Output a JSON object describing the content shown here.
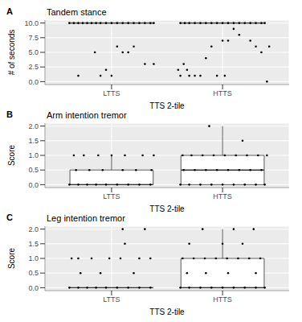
{
  "chart_data": [
    {
      "type": "box",
      "panel_label": "A",
      "title": "Tandem stance",
      "x_label": "TTS 2-tile",
      "y_label": "# of seconds",
      "grid": true,
      "xlim": [
        0.4,
        2.6
      ],
      "xticks": [
        {
          "value": 1,
          "label": "LTTS"
        },
        {
          "value": 2,
          "label": "HTTS"
        }
      ],
      "ylim": [
        -0.5,
        10.5
      ],
      "yticks": [
        {
          "value": 0,
          "label": "0.0"
        },
        {
          "value": 2.5,
          "label": "2.5"
        },
        {
          "value": 5,
          "label": "5.0"
        },
        {
          "value": 7.5,
          "label": "7.5"
        },
        {
          "value": 10,
          "label": "10.0"
        }
      ],
      "boxes": [
        {
          "x": 1,
          "whisker_low": 10,
          "q1": 10,
          "median": 10,
          "q3": 10,
          "whisker_high": 10
        },
        {
          "x": 2,
          "whisker_low": 10,
          "q1": 10,
          "median": 10,
          "q3": 10,
          "whisker_high": 10
        }
      ],
      "points": [
        [
          0.62,
          10
        ],
        [
          0.66,
          10
        ],
        [
          0.7,
          10
        ],
        [
          0.74,
          10
        ],
        [
          0.78,
          10
        ],
        [
          0.82,
          10
        ],
        [
          0.86,
          10
        ],
        [
          0.9,
          10
        ],
        [
          0.95,
          10
        ],
        [
          1.0,
          10
        ],
        [
          1.05,
          10
        ],
        [
          1.1,
          10
        ],
        [
          1.15,
          10
        ],
        [
          1.2,
          10
        ],
        [
          1.25,
          10
        ],
        [
          1.3,
          10
        ],
        [
          1.35,
          10
        ],
        [
          1.38,
          10
        ],
        [
          0.7,
          1
        ],
        [
          0.85,
          5
        ],
        [
          0.9,
          1
        ],
        [
          0.95,
          2
        ],
        [
          1.0,
          1
        ],
        [
          1.05,
          6
        ],
        [
          1.1,
          5
        ],
        [
          1.15,
          5
        ],
        [
          1.2,
          6
        ],
        [
          1.3,
          3
        ],
        [
          1.38,
          3
        ],
        [
          1.62,
          10
        ],
        [
          1.66,
          10
        ],
        [
          1.7,
          10
        ],
        [
          1.75,
          10
        ],
        [
          1.8,
          10
        ],
        [
          1.85,
          10
        ],
        [
          1.9,
          10
        ],
        [
          1.95,
          10
        ],
        [
          2.0,
          10
        ],
        [
          2.05,
          10
        ],
        [
          2.1,
          10
        ],
        [
          2.15,
          10
        ],
        [
          2.2,
          10
        ],
        [
          2.25,
          10
        ],
        [
          2.3,
          10
        ],
        [
          2.35,
          10
        ],
        [
          2.38,
          10
        ],
        [
          1.6,
          2
        ],
        [
          1.62,
          1
        ],
        [
          1.65,
          3
        ],
        [
          1.68,
          2
        ],
        [
          1.7,
          1
        ],
        [
          1.75,
          1
        ],
        [
          1.8,
          1
        ],
        [
          1.85,
          4
        ],
        [
          1.9,
          6
        ],
        [
          1.95,
          1
        ],
        [
          2.0,
          7
        ],
        [
          2.02,
          1
        ],
        [
          2.05,
          7
        ],
        [
          2.1,
          9
        ],
        [
          2.15,
          8
        ],
        [
          2.25,
          7
        ],
        [
          2.3,
          6
        ],
        [
          2.35,
          5
        ],
        [
          2.4,
          0
        ],
        [
          2.42,
          6
        ]
      ]
    },
    {
      "type": "box",
      "panel_label": "B",
      "title": "Arm intention tremor",
      "x_label": "TTS 2-tile",
      "y_label": "Score",
      "grid": true,
      "xlim": [
        0.4,
        2.6
      ],
      "xticks": [
        {
          "value": 1,
          "label": "LTTS"
        },
        {
          "value": 2,
          "label": "HTTS"
        }
      ],
      "ylim": [
        -0.1,
        2.1
      ],
      "yticks": [
        {
          "value": 0,
          "label": "0.0"
        },
        {
          "value": 0.5,
          "label": "0.5"
        },
        {
          "value": 1,
          "label": "1.0"
        },
        {
          "value": 1.5,
          "label": "1.5"
        },
        {
          "value": 2,
          "label": "2.0"
        }
      ],
      "boxes": [
        {
          "x": 1,
          "whisker_low": 0,
          "q1": 0,
          "median": 0,
          "q3": 0.5,
          "whisker_high": 1
        },
        {
          "x": 2,
          "whisker_low": 0,
          "q1": 0,
          "median": 0.5,
          "q3": 1,
          "whisker_high": 2
        }
      ],
      "points": [
        [
          0.62,
          0
        ],
        [
          0.7,
          0
        ],
        [
          0.78,
          0
        ],
        [
          0.86,
          0
        ],
        [
          0.95,
          0
        ],
        [
          1.05,
          0
        ],
        [
          1.15,
          0
        ],
        [
          1.25,
          0
        ],
        [
          1.35,
          0
        ],
        [
          0.68,
          0.5
        ],
        [
          0.8,
          0.5
        ],
        [
          0.92,
          0.5
        ],
        [
          1.1,
          0.5
        ],
        [
          1.22,
          0.5
        ],
        [
          1.36,
          0.5
        ],
        [
          0.66,
          1
        ],
        [
          0.75,
          1
        ],
        [
          0.88,
          1
        ],
        [
          1.0,
          1
        ],
        [
          1.12,
          1
        ],
        [
          1.28,
          1
        ],
        [
          1.38,
          1
        ],
        [
          1.62,
          0
        ],
        [
          1.7,
          0
        ],
        [
          1.8,
          0
        ],
        [
          1.9,
          0
        ],
        [
          2.0,
          0
        ],
        [
          2.1,
          0
        ],
        [
          2.2,
          0
        ],
        [
          2.3,
          0
        ],
        [
          2.38,
          0
        ],
        [
          1.65,
          0.5
        ],
        [
          1.75,
          0.5
        ],
        [
          1.85,
          0.5
        ],
        [
          1.95,
          0.5
        ],
        [
          2.05,
          0.5
        ],
        [
          2.15,
          0.5
        ],
        [
          2.25,
          0.5
        ],
        [
          2.35,
          0.5
        ],
        [
          1.64,
          1
        ],
        [
          1.72,
          1
        ],
        [
          1.82,
          1
        ],
        [
          1.92,
          1
        ],
        [
          2.02,
          1
        ],
        [
          2.12,
          1
        ],
        [
          2.22,
          1
        ],
        [
          2.32,
          1
        ],
        [
          2.4,
          1
        ],
        [
          2.18,
          1.5
        ],
        [
          1.88,
          2
        ]
      ]
    },
    {
      "type": "box",
      "panel_label": "C",
      "title": "Leg intention tremor",
      "x_label": "TTS 2-tile",
      "y_label": "Score",
      "grid": true,
      "xlim": [
        0.4,
        2.6
      ],
      "xticks": [
        {
          "value": 1,
          "label": "LTTS"
        },
        {
          "value": 2,
          "label": "HTTS"
        }
      ],
      "ylim": [
        -0.1,
        2.1
      ],
      "yticks": [
        {
          "value": 0,
          "label": "0.0"
        },
        {
          "value": 0.5,
          "label": "0.5"
        },
        {
          "value": 1,
          "label": "1.0"
        },
        {
          "value": 1.5,
          "label": "1.5"
        },
        {
          "value": 2,
          "label": "2.0"
        }
      ],
      "boxes": [
        {
          "x": 1,
          "whisker_low": 0,
          "q1": 0,
          "median": 0,
          "q3": 0,
          "whisker_high": 0
        },
        {
          "x": 2,
          "whisker_low": 0,
          "q1": 0,
          "median": 0,
          "q3": 1,
          "whisker_high": 2
        }
      ],
      "points": [
        [
          0.62,
          0
        ],
        [
          0.7,
          0
        ],
        [
          0.78,
          0
        ],
        [
          0.86,
          0
        ],
        [
          0.95,
          0
        ],
        [
          1.05,
          0
        ],
        [
          1.15,
          0
        ],
        [
          1.25,
          0
        ],
        [
          1.35,
          0
        ],
        [
          0.72,
          0.5
        ],
        [
          0.9,
          0.5
        ],
        [
          1.2,
          0.5
        ],
        [
          0.64,
          1
        ],
        [
          0.7,
          1
        ],
        [
          0.82,
          1
        ],
        [
          0.98,
          1
        ],
        [
          1.08,
          1
        ],
        [
          1.25,
          1
        ],
        [
          1.35,
          1
        ],
        [
          1.12,
          1.5
        ],
        [
          1.1,
          2
        ],
        [
          1.3,
          2
        ],
        [
          1.62,
          0
        ],
        [
          1.7,
          0
        ],
        [
          1.8,
          0
        ],
        [
          1.9,
          0
        ],
        [
          2.0,
          0
        ],
        [
          2.1,
          0
        ],
        [
          2.2,
          0
        ],
        [
          2.3,
          0
        ],
        [
          2.38,
          0
        ],
        [
          1.68,
          0.5
        ],
        [
          1.85,
          0.5
        ],
        [
          2.05,
          0.5
        ],
        [
          2.3,
          0.5
        ],
        [
          1.64,
          1
        ],
        [
          1.74,
          1
        ],
        [
          1.84,
          1
        ],
        [
          1.94,
          1
        ],
        [
          2.04,
          1
        ],
        [
          2.14,
          1
        ],
        [
          2.24,
          1
        ],
        [
          2.34,
          1
        ],
        [
          1.7,
          1.5
        ],
        [
          2.0,
          1.5
        ],
        [
          2.18,
          1.5
        ],
        [
          1.82,
          2
        ],
        [
          2.1,
          2
        ],
        [
          2.28,
          2
        ]
      ]
    }
  ]
}
